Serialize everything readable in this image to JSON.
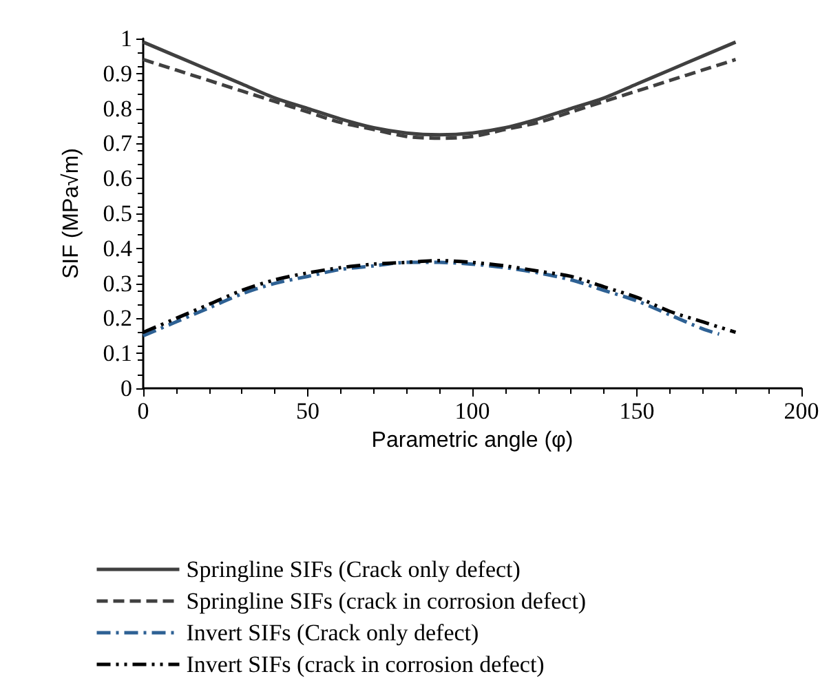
{
  "chart_data": {
    "type": "line",
    "xlabel": "Parametric angle (φ)",
    "ylabel": "SIF (MPa√m)",
    "xlim": [
      0,
      200
    ],
    "xticks": [
      0,
      50,
      100,
      150,
      200
    ],
    "ylim": [
      0,
      1
    ],
    "yticks": [
      0,
      0.1,
      0.2,
      0.3,
      0.4,
      0.5,
      0.6,
      0.7,
      0.8,
      0.9,
      1
    ],
    "grid": false,
    "legend": "bottom",
    "marker": "none",
    "x": [
      0,
      10,
      20,
      30,
      40,
      50,
      60,
      70,
      80,
      90,
      100,
      110,
      120,
      130,
      140,
      150,
      160,
      170,
      180
    ],
    "series": [
      {
        "name": "Springline SIFs (Crack only defect)",
        "color": "#404040",
        "line_style": "solid",
        "values": [
          0.99,
          0.95,
          0.91,
          0.87,
          0.83,
          0.8,
          0.77,
          0.745,
          0.73,
          0.725,
          0.73,
          0.745,
          0.77,
          0.8,
          0.83,
          0.87,
          0.91,
          0.95,
          0.99
        ]
      },
      {
        "name": "Springline SIFs (crack in corrosion defect)",
        "color": "#404040",
        "line_style": "dashed",
        "values": [
          0.94,
          0.91,
          0.88,
          0.85,
          0.82,
          0.79,
          0.76,
          0.74,
          0.72,
          0.715,
          0.72,
          0.74,
          0.76,
          0.79,
          0.82,
          0.85,
          0.88,
          0.91,
          0.94
        ]
      },
      {
        "name": "Invert SIFs (Crack only defect)",
        "color": "#2e6194",
        "line_style": "dashdot",
        "x": [
          0,
          10,
          20,
          30,
          40,
          50,
          60,
          70,
          80,
          90,
          100,
          110,
          120,
          130,
          140,
          150,
          160,
          170,
          175
        ],
        "values": [
          0.15,
          0.19,
          0.23,
          0.27,
          0.3,
          0.32,
          0.34,
          0.35,
          0.36,
          0.36,
          0.355,
          0.345,
          0.33,
          0.31,
          0.28,
          0.25,
          0.21,
          0.17,
          0.155
        ]
      },
      {
        "name": "Invert SIFs (crack in corrosion defect)",
        "color": "#000000",
        "line_style": "dashdotdot",
        "values": [
          0.16,
          0.2,
          0.24,
          0.28,
          0.31,
          0.33,
          0.345,
          0.355,
          0.36,
          0.365,
          0.36,
          0.35,
          0.335,
          0.32,
          0.29,
          0.26,
          0.22,
          0.19,
          0.16
        ]
      }
    ]
  }
}
